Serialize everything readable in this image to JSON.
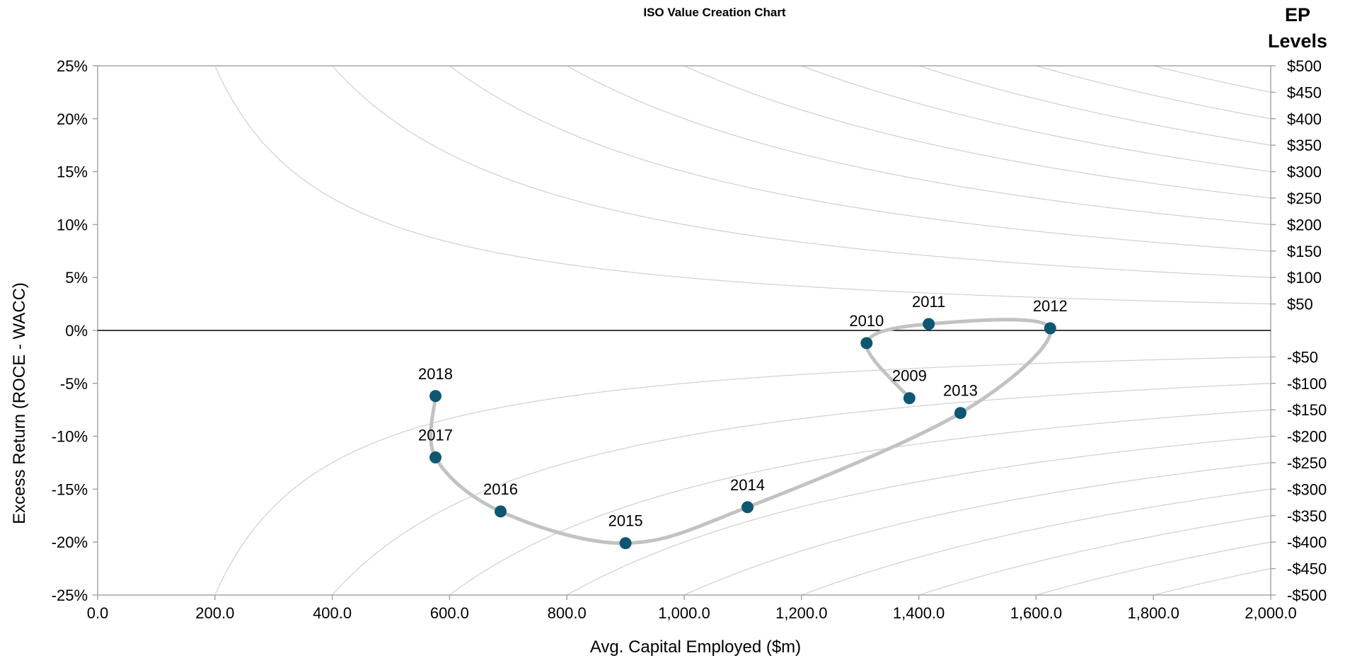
{
  "chart_data": {
    "type": "scatter",
    "title": "ISO Value Creation Chart",
    "xlabel": "Avg. Capital Employed ($m)",
    "ylabel": "Excess Return (ROCE - WACC)",
    "xlim": [
      0,
      2000
    ],
    "ylim": [
      -0.25,
      0.25
    ],
    "x_ticks": [
      "0.0",
      "200.0",
      "400.0",
      "600.0",
      "800.0",
      "1,000.0",
      "1,200.0",
      "1,400.0",
      "1,600.0",
      "1,800.0",
      "2,000.0"
    ],
    "y_ticks": [
      "25%",
      "20%",
      "15%",
      "10%",
      "5%",
      "0%",
      "-5%",
      "-10%",
      "-15%",
      "-20%",
      "-25%"
    ],
    "secondary_axis": {
      "title_line1": "EP",
      "title_line2": "Levels",
      "ticks": [
        "$500",
        "$450",
        "$400",
        "$350",
        "$300",
        "$250",
        "$200",
        "$150",
        "$100",
        "$50",
        "-$50",
        "-$100",
        "-$150",
        "-$200",
        "-$250",
        "-$300",
        "-$350",
        "-$400",
        "-$450",
        "-$500"
      ]
    },
    "ep_levels": [
      50,
      100,
      150,
      200,
      250,
      300,
      350,
      400,
      450,
      500,
      -50,
      -100,
      -150,
      -200,
      -250,
      -300,
      -350,
      -400,
      -450,
      -500
    ],
    "series": [
      {
        "points": [
          {
            "label": "2009",
            "x": 1384,
            "y": -0.064
          },
          {
            "label": "2010",
            "x": 1311,
            "y": -0.012
          },
          {
            "label": "2011",
            "x": 1417,
            "y": 0.006
          },
          {
            "label": "2012",
            "x": 1624,
            "y": 0.002
          },
          {
            "label": "2013",
            "x": 1471,
            "y": -0.078
          },
          {
            "label": "2014",
            "x": 1108,
            "y": -0.167
          },
          {
            "label": "2015",
            "x": 900,
            "y": -0.201
          },
          {
            "label": "2016",
            "x": 687,
            "y": -0.171
          },
          {
            "label": "2017",
            "x": 576,
            "y": -0.12
          },
          {
            "label": "2018",
            "x": 576,
            "y": -0.062
          }
        ]
      }
    ],
    "grid": false,
    "colors": {
      "marker": "#0d5773",
      "path": "#c2c2c2",
      "iso_lines": "#cfcfcf",
      "axis": "#a6a6a6"
    }
  }
}
